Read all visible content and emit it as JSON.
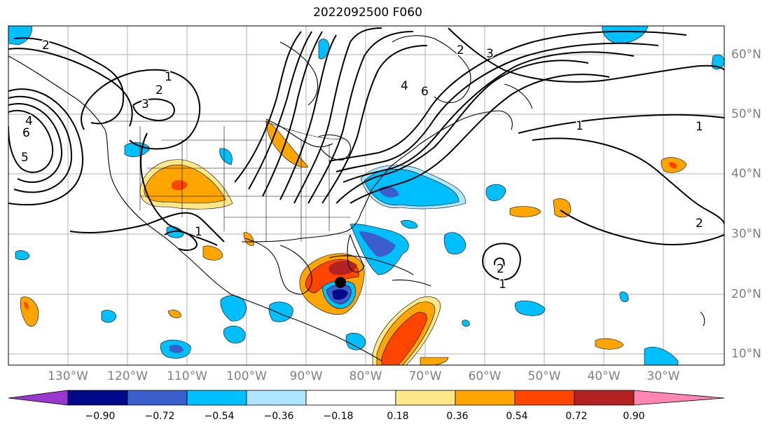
{
  "title": "2022092500 F060",
  "map": {
    "lon_labels": [
      "130°W",
      "120°W",
      "110°W",
      "100°W",
      "90°W",
      "80°W",
      "70°W",
      "60°W",
      "50°W",
      "40°W",
      "30°W"
    ],
    "lat_labels": [
      "60°N",
      "50°N",
      "40°N",
      "30°N",
      "20°N",
      "10°N"
    ],
    "contour_labels": [
      "2",
      "1",
      "2",
      "3",
      "4",
      "5",
      "6",
      "1",
      "2",
      "3",
      "4",
      "6",
      "1",
      "1",
      "2",
      "2",
      "1"
    ]
  },
  "colorbar": {
    "colors": [
      "#9a37cf",
      "#000a88",
      "#3a5fcd",
      "#00bfff",
      "#afe6ff",
      "#ffffff",
      "#ffe889",
      "#ffa500",
      "#ff4500",
      "#b22222",
      "#ff85b2"
    ],
    "labels": [
      "−0.90",
      "−0.72",
      "−0.54",
      "−0.36",
      "−0.18",
      "0.18",
      "0.36",
      "0.54",
      "0.72",
      "0.90"
    ]
  }
}
